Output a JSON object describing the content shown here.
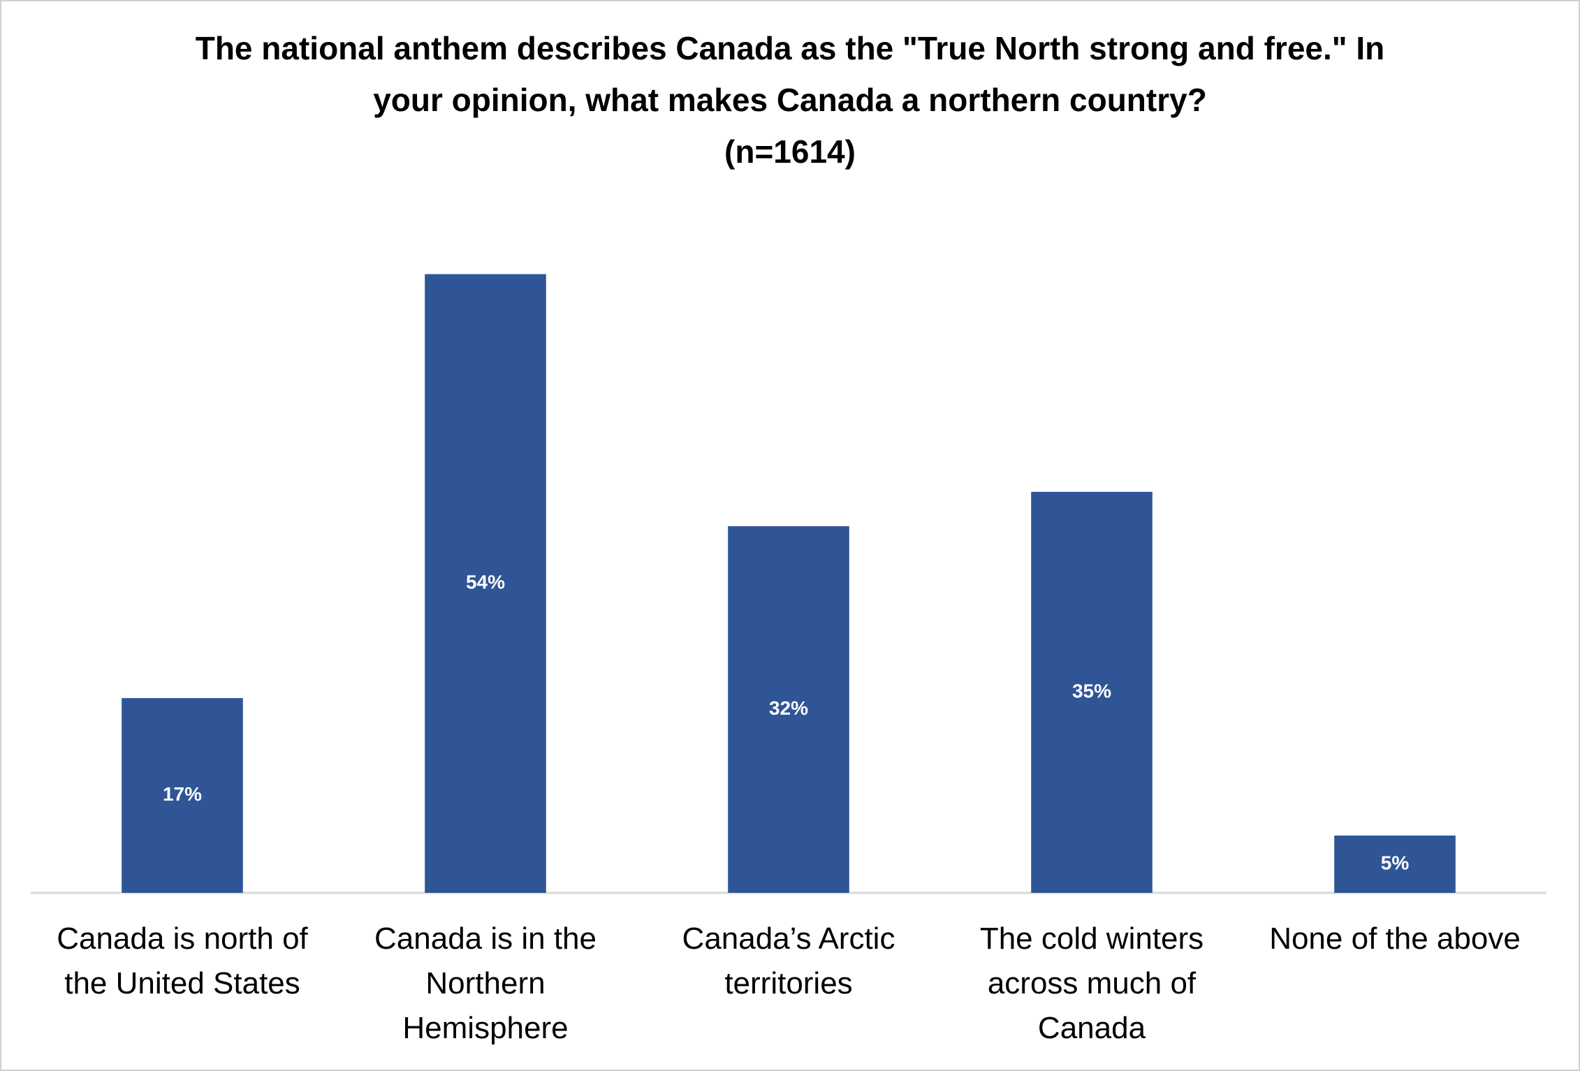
{
  "chart_data": {
    "type": "bar",
    "title": "The national anthem describes Canada as the \"True North strong and free.\" In your opinion, what makes Canada a northern country?",
    "subtitle": "(n=1614)",
    "categories": [
      "Canada is north of the United States",
      "Canada is in the Northern Hemisphere",
      "Canada’s Arctic territories",
      "The cold winters across much of Canada",
      "None of the above"
    ],
    "values": [
      17,
      54,
      32,
      35,
      5
    ],
    "value_labels": [
      "17%",
      "54%",
      "32%",
      "35%",
      "5%"
    ],
    "color": "#2f5597",
    "ylim": [
      0,
      60
    ],
    "grid": false
  }
}
